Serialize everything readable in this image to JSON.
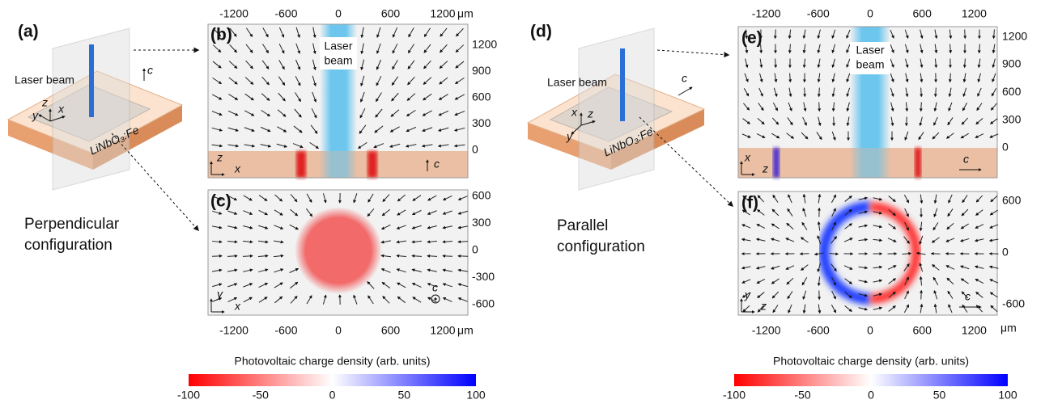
{
  "left": {
    "label": "(a)",
    "laser": "Laser beam",
    "crystal": "LiNbO₃:Fe",
    "axes": [
      "z",
      "y",
      "x"
    ],
    "c": "c",
    "config": [
      "Perpendicular",
      "configuration"
    ]
  },
  "panel_b": {
    "label": "(b)",
    "beam": [
      "Laser",
      "beam"
    ],
    "xticks": [
      -1200,
      -600,
      0,
      600,
      1200
    ],
    "unit": "μm",
    "yticks": [
      1200,
      900,
      600,
      300,
      0
    ],
    "axes": [
      "z",
      "x"
    ],
    "c": "c"
  },
  "panel_c": {
    "label": "(c)",
    "yticks": [
      600,
      300,
      0,
      -300,
      -600
    ],
    "xticks": [
      -1200,
      -600,
      0,
      600,
      1200
    ],
    "unit": "μm",
    "axes": [
      "y",
      "x"
    ],
    "c": "c"
  },
  "colorbar_left": {
    "title": "Photovoltaic charge density (arb. units)",
    "ticks": [
      -100,
      -50,
      0,
      50,
      100
    ]
  },
  "right": {
    "label": "(d)",
    "laser": "Laser beam",
    "crystal": "LiNbO₃:Fe",
    "axes": [
      "x",
      "z",
      "y"
    ],
    "c": "c",
    "config": [
      "Parallel",
      "configuration"
    ]
  },
  "panel_e": {
    "label": "(e)",
    "beam": [
      "Laser",
      "beam"
    ],
    "xticks": [
      -1200,
      -600,
      0,
      600,
      1200
    ],
    "yticks": [
      1200,
      900,
      600,
      300,
      0
    ],
    "axes": [
      "x",
      "z"
    ],
    "c": "c"
  },
  "panel_f": {
    "label": "(f)",
    "yticks": [
      600,
      0,
      -600
    ],
    "xticks": [
      -1200,
      -600,
      0,
      600,
      1200
    ],
    "unit": "μm",
    "axes": [
      "y",
      "z"
    ],
    "c": "c"
  },
  "colorbar_right": {
    "title": "Photovoltaic charge density (arb. units)",
    "ticks": [
      -100,
      -50,
      0,
      50,
      100
    ]
  }
}
